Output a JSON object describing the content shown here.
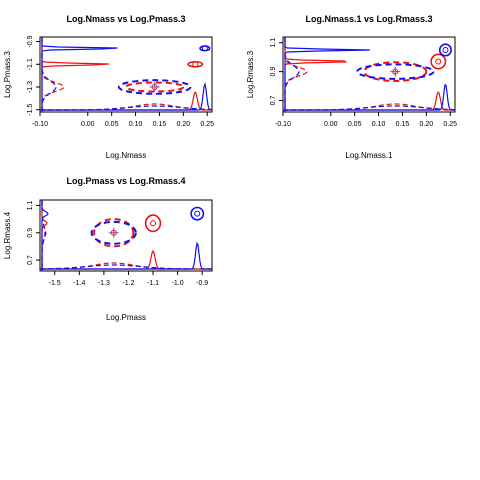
{
  "colors": {
    "red": "#ee1111",
    "blue": "#1111ee",
    "purple": "#8844aa",
    "axis": "#000000"
  },
  "chart_data": [
    {
      "type": "scatter",
      "title": "Log.Nmass vs Log.Pmass.3",
      "xlabel": "Log.Nmass",
      "ylabel": "Log.Pmass.3",
      "xlim": [
        -0.1,
        0.26
      ],
      "ylim": [
        -1.52,
        -0.86
      ],
      "xticks": [
        -0.1,
        0.0,
        0.05,
        0.1,
        0.15,
        0.2,
        0.25
      ],
      "xtick_labels": [
        "-0.10",
        "0.00",
        "0.05",
        "0.10",
        "0.15",
        "0.20",
        "0.25"
      ],
      "yticks": [
        -1.5,
        -1.3,
        -1.1,
        -0.9
      ],
      "ytick_labels": [
        "-1.5",
        "-1.3",
        "-1.1",
        "-0.9"
      ],
      "series": [
        {
          "color": "red",
          "dashed": true,
          "center": [
            0.14,
            -1.3
          ],
          "radius": [
            0.06,
            0.04
          ],
          "marker": "o"
        },
        {
          "color": "blue",
          "dashed": true,
          "center": [
            0.14,
            -1.3
          ],
          "radius": [
            0.075,
            0.06
          ]
        },
        {
          "color": "red",
          "dashed": false,
          "center": [
            0.225,
            -1.1
          ],
          "radius": [
            0.015,
            0.022
          ],
          "marker": "o"
        },
        {
          "color": "blue",
          "dashed": false,
          "center": [
            0.245,
            -0.96
          ],
          "radius": [
            0.01,
            0.02
          ],
          "marker": "o"
        }
      ]
    },
    {
      "type": "scatter",
      "title": "Log.Nmass.1 vs Log.Rmass.3",
      "xlabel": "Log.Nmass.1",
      "ylabel": "Log.Rmass.3",
      "xlim": [
        -0.1,
        0.26
      ],
      "ylim": [
        0.62,
        1.14
      ],
      "xticks": [
        -0.1,
        0.0,
        0.05,
        0.1,
        0.15,
        0.2,
        0.25
      ],
      "xtick_labels": [
        "-0.10",
        "0.00",
        "0.05",
        "0.10",
        "0.15",
        "0.20",
        "0.25"
      ],
      "yticks": [
        0.7,
        0.9,
        1.1
      ],
      "ytick_labels": [
        "0.7",
        "0.9",
        "1.1"
      ],
      "series": [
        {
          "color": "red",
          "dashed": true,
          "center": [
            0.135,
            0.9
          ],
          "radius": [
            0.065,
            0.065
          ],
          "marker": "o"
        },
        {
          "color": "blue",
          "dashed": true,
          "center": [
            0.135,
            0.9
          ],
          "radius": [
            0.08,
            0.05
          ]
        },
        {
          "color": "red",
          "dashed": false,
          "center": [
            0.225,
            0.97
          ],
          "radius": [
            0.015,
            0.05
          ],
          "marker": "o"
        },
        {
          "color": "blue",
          "dashed": false,
          "center": [
            0.24,
            1.05
          ],
          "radius": [
            0.012,
            0.04
          ],
          "marker": "o"
        }
      ]
    },
    {
      "type": "scatter",
      "title": "Log.Pmass vs Log.Rmass.4",
      "xlabel": "Log.Pmass",
      "ylabel": "Log.Rmass.4",
      "xlim": [
        -1.56,
        -0.86
      ],
      "ylim": [
        0.62,
        1.14
      ],
      "xticks": [
        -1.5,
        -1.4,
        -1.3,
        -1.2,
        -1.1,
        -1.0,
        -0.9
      ],
      "xtick_labels": [
        "-1.5",
        "-1.4",
        "-1.3",
        "-1.2",
        "-1.1",
        "-1.0",
        "-0.9"
      ],
      "yticks": [
        0.7,
        0.9,
        1.1
      ],
      "ytick_labels": [
        "0.7",
        "0.9",
        "1.1"
      ],
      "series": [
        {
          "color": "red",
          "dashed": true,
          "center": [
            -1.26,
            0.9
          ],
          "radius": [
            0.08,
            0.1
          ],
          "marker": "o"
        },
        {
          "color": "blue",
          "dashed": true,
          "center": [
            -1.26,
            0.9
          ],
          "radius": [
            0.09,
            0.08
          ]
        },
        {
          "color": "red",
          "dashed": false,
          "center": [
            -1.1,
            0.97
          ],
          "radius": [
            0.03,
            0.06
          ],
          "marker": "o"
        },
        {
          "color": "blue",
          "dashed": false,
          "center": [
            -0.92,
            1.04
          ],
          "radius": [
            0.025,
            0.045
          ],
          "marker": "o"
        }
      ]
    }
  ]
}
